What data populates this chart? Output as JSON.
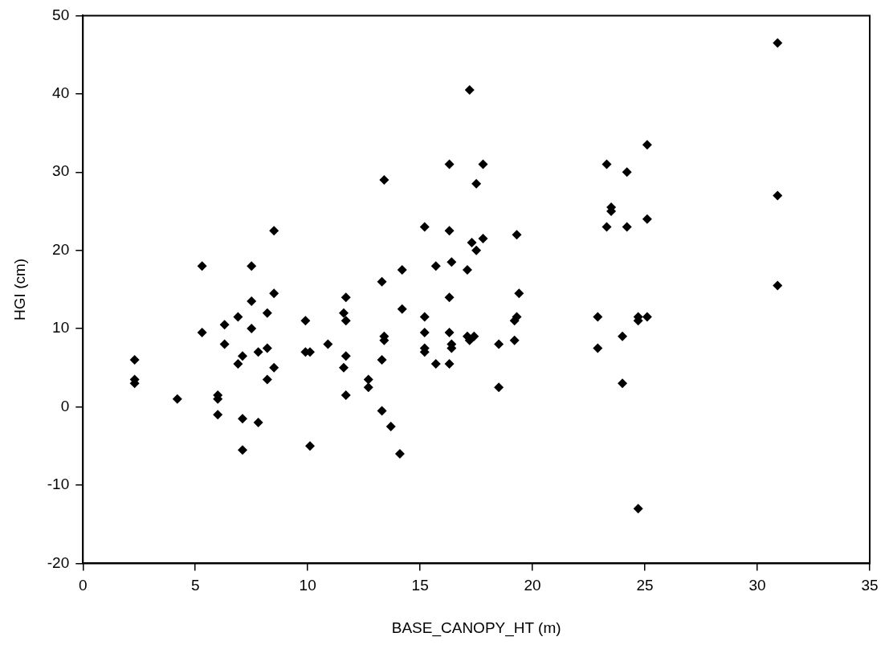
{
  "chart_data": {
    "type": "scatter",
    "xlabel": "BASE_CANOPY_HT (m)",
    "ylabel": "HGI (cm)",
    "color": "#000000",
    "marker": "diamond",
    "grid": false,
    "legend": false,
    "xlim": [
      0,
      35
    ],
    "xticks": [
      0,
      5,
      10,
      15,
      20,
      25,
      30,
      35
    ],
    "ylim": [
      -20,
      50
    ],
    "yticks": [
      -20,
      -10,
      0,
      10,
      20,
      30,
      40,
      50
    ],
    "x": [
      2.3,
      2.3,
      2.3,
      4.2,
      5.3,
      5.3,
      6,
      6,
      6,
      6.3,
      6.3,
      6.9,
      6.9,
      7.1,
      7.1,
      7.1,
      7.5,
      7.5,
      7.5,
      7.8,
      7.8,
      8.2,
      8.2,
      8.2,
      8.5,
      8.5,
      8.5,
      9.9,
      9.9,
      10.1,
      10.1,
      10.9,
      11.6,
      11.6,
      11.7,
      11.7,
      11.7,
      11.7,
      12.7,
      12.7,
      13.3,
      13.4,
      13.4,
      13.4,
      13.3,
      13.3,
      13.7,
      14.1,
      14.2,
      14.2,
      15.2,
      15.2,
      15.2,
      15.2,
      15.2,
      15.7,
      15.7,
      16.3,
      16.3,
      16.3,
      16.3,
      16.3,
      16.4,
      16.4,
      16.4,
      17.1,
      17.2,
      17.1,
      17.2,
      17.4,
      17.3,
      17.5,
      17.5,
      17.8,
      17.8,
      18.5,
      18.5,
      19.3,
      19.4,
      19.3,
      19.2,
      19.2,
      22.9,
      22.9,
      23.3,
      23.3,
      23.5,
      23.5,
      24,
      24,
      24.2,
      24.2,
      24.7,
      24.7,
      24.7,
      25.1,
      25.1,
      25.1,
      30.9,
      30.9,
      30.9
    ],
    "values": [
      6,
      3.5,
      3,
      1,
      18,
      9.5,
      1.5,
      1,
      -1,
      10.5,
      8,
      11.5,
      5.5,
      6.5,
      -1.5,
      -5.5,
      18,
      13.5,
      10,
      7,
      -2,
      12,
      7.5,
      3.5,
      22.5,
      14.5,
      5,
      11,
      7,
      7,
      -5,
      8,
      12,
      5,
      14,
      11,
      6.5,
      1.5,
      3.5,
      2.5,
      16,
      29,
      9,
      8.5,
      6,
      -0.5,
      -2.5,
      -6,
      17.5,
      12.5,
      23,
      11.5,
      9.5,
      7.5,
      7,
      18,
      5.5,
      31,
      22.5,
      14,
      9.5,
      5.5,
      18.5,
      8,
      7.5,
      17.5,
      40.5,
      9,
      8.5,
      9,
      21,
      28.5,
      20,
      31,
      21.5,
      8,
      2.5,
      22,
      14.5,
      11.5,
      11,
      8.5,
      11.5,
      7.5,
      31,
      23,
      25.5,
      25,
      9,
      3,
      30,
      23,
      11.5,
      11,
      -13,
      33.5,
      24,
      11.5,
      46.5,
      27,
      15.5
    ]
  }
}
